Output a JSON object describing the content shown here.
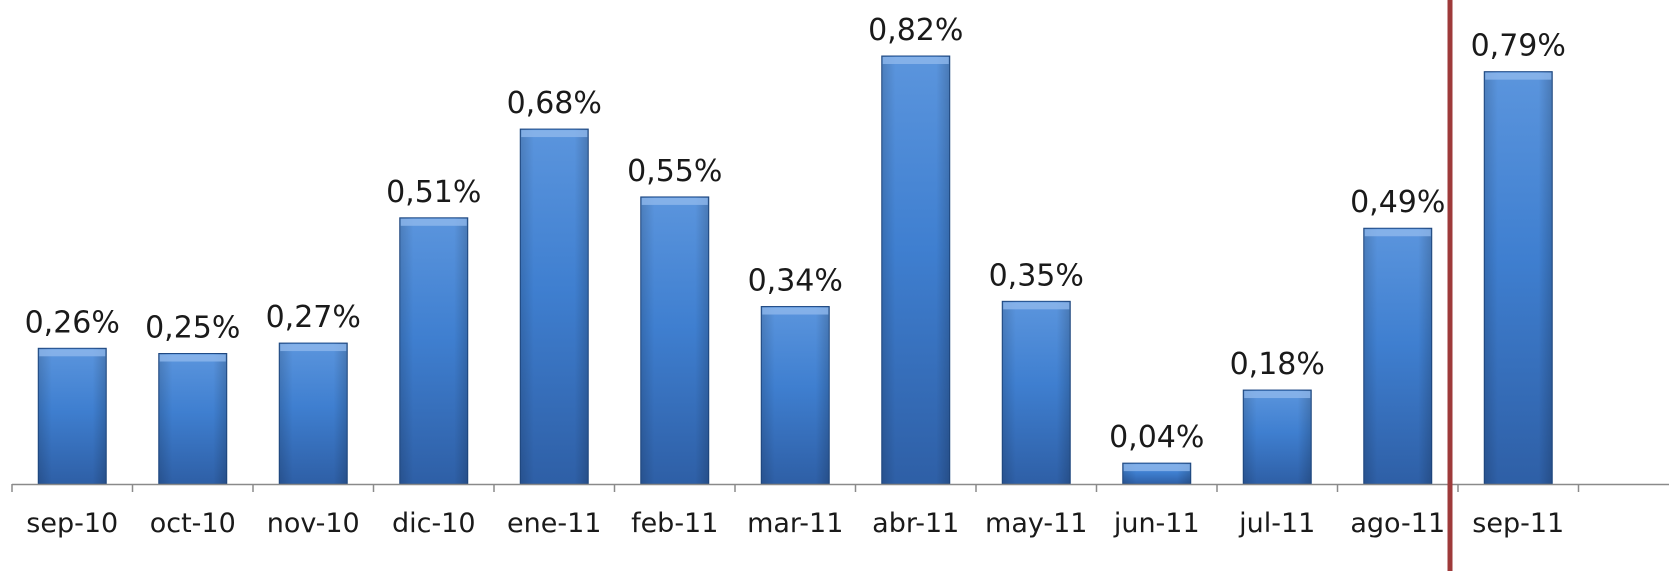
{
  "chart_data": {
    "type": "bar",
    "categories": [
      "sep-10",
      "oct-10",
      "nov-10",
      "dic-10",
      "ene-11",
      "feb-11",
      "mar-11",
      "abr-11",
      "may-11",
      "jun-11",
      "jul-11",
      "ago-11",
      "sep-11"
    ],
    "values": [
      0.26,
      0.25,
      0.27,
      0.51,
      0.68,
      0.55,
      0.34,
      0.82,
      0.35,
      0.04,
      0.18,
      0.49,
      0.79
    ],
    "data_labels": [
      "0,26%",
      "0,25%",
      "0,27%",
      "0,51%",
      "0,68%",
      "0,55%",
      "0,34%",
      "0,82%",
      "0,35%",
      "0,04%",
      "0,18%",
      "0,49%",
      "0,79%"
    ],
    "ylim": [
      0,
      0.82
    ],
    "grid": false,
    "separator_after_category": "ago-11",
    "colors": {
      "bar_top": "#5b95dd",
      "bar_mid": "#3f7fd0",
      "bar_bottom": "#2e5fa6",
      "bar_edge": "#1f4a86",
      "axis": "#8a8a8a",
      "separator": "#9e3a3a"
    }
  }
}
